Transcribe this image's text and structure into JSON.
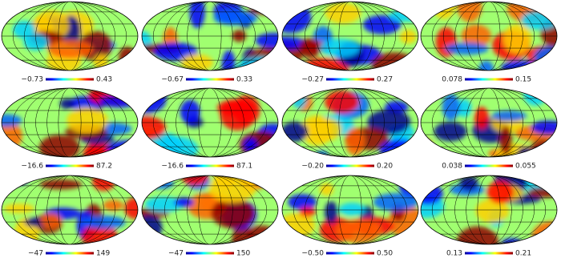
{
  "panels": [
    {
      "min": "−0.73",
      "max": "0.43"
    },
    {
      "min": "−0.67",
      "max": "0.33"
    },
    {
      "min": "−0.27",
      "max": "0.27"
    },
    {
      "min": "0.078",
      "max": "0.15"
    },
    {
      "min": "−16.6",
      "max": "87.2"
    },
    {
      "min": "−16.6",
      "max": "87.1"
    },
    {
      "min": "−0.20",
      "max": "0.20"
    },
    {
      "min": "0.038",
      "max": "0.055"
    },
    {
      "min": "−47",
      "max": "149"
    },
    {
      "min": "−47",
      "max": "150"
    },
    {
      "min": "−0.50",
      "max": "0.50"
    },
    {
      "min": "0.13",
      "max": "0.21"
    }
  ]
}
